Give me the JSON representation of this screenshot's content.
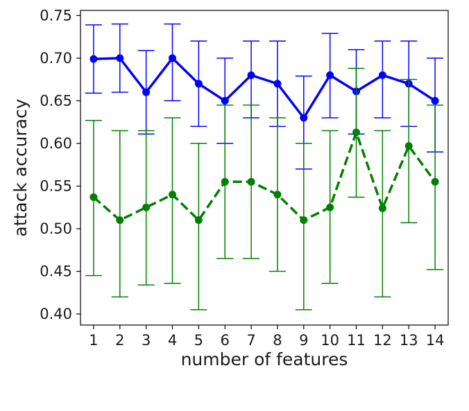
{
  "chart_data": {
    "type": "line",
    "title": "",
    "xlabel": "number of features",
    "ylabel": "attack accuracy",
    "x": [
      1,
      2,
      3,
      4,
      5,
      6,
      7,
      8,
      9,
      10,
      11,
      12,
      13,
      14
    ],
    "xlim": [
      0.5,
      14.5
    ],
    "ylim": [
      0.387,
      0.756
    ],
    "yticks": [
      0.4,
      0.45,
      0.5,
      0.55,
      0.6,
      0.65,
      0.7,
      0.75
    ],
    "ytick_labels": [
      "0.40",
      "0.45",
      "0.50",
      "0.55",
      "0.60",
      "0.65",
      "0.70",
      "0.75"
    ],
    "xtick_labels": [
      "1",
      "2",
      "3",
      "4",
      "5",
      "6",
      "7",
      "8",
      "9",
      "10",
      "11",
      "12",
      "13",
      "14"
    ],
    "grid": false,
    "legend": false,
    "series": [
      {
        "color": "#0000ff",
        "line_style": "solid",
        "marker": "circle",
        "values": [
          0.699,
          0.7,
          0.66,
          0.7,
          0.67,
          0.65,
          0.68,
          0.67,
          0.63,
          0.68,
          0.661,
          0.68,
          0.67,
          0.65
        ],
        "error_lower": [
          0.659,
          0.66,
          0.611,
          0.65,
          0.62,
          0.6,
          0.63,
          0.62,
          0.57,
          0.63,
          0.611,
          0.63,
          0.62,
          0.59
        ],
        "error_upper": [
          0.739,
          0.74,
          0.709,
          0.74,
          0.72,
          0.7,
          0.72,
          0.72,
          0.679,
          0.729,
          0.71,
          0.72,
          0.72,
          0.7
        ]
      },
      {
        "color": "#008000",
        "line_style": "dashed",
        "marker": "circle",
        "values": [
          0.537,
          0.51,
          0.525,
          0.54,
          0.51,
          0.555,
          0.555,
          0.54,
          0.51,
          0.525,
          0.613,
          0.524,
          0.597,
          0.555
        ],
        "error_lower": [
          0.445,
          0.42,
          0.434,
          0.436,
          0.405,
          0.465,
          0.465,
          0.45,
          0.405,
          0.436,
          0.537,
          0.42,
          0.507,
          0.452
        ],
        "error_upper": [
          0.627,
          0.615,
          0.615,
          0.63,
          0.6,
          0.645,
          0.645,
          0.63,
          0.6,
          0.615,
          0.688,
          0.615,
          0.675,
          0.645
        ]
      }
    ]
  }
}
